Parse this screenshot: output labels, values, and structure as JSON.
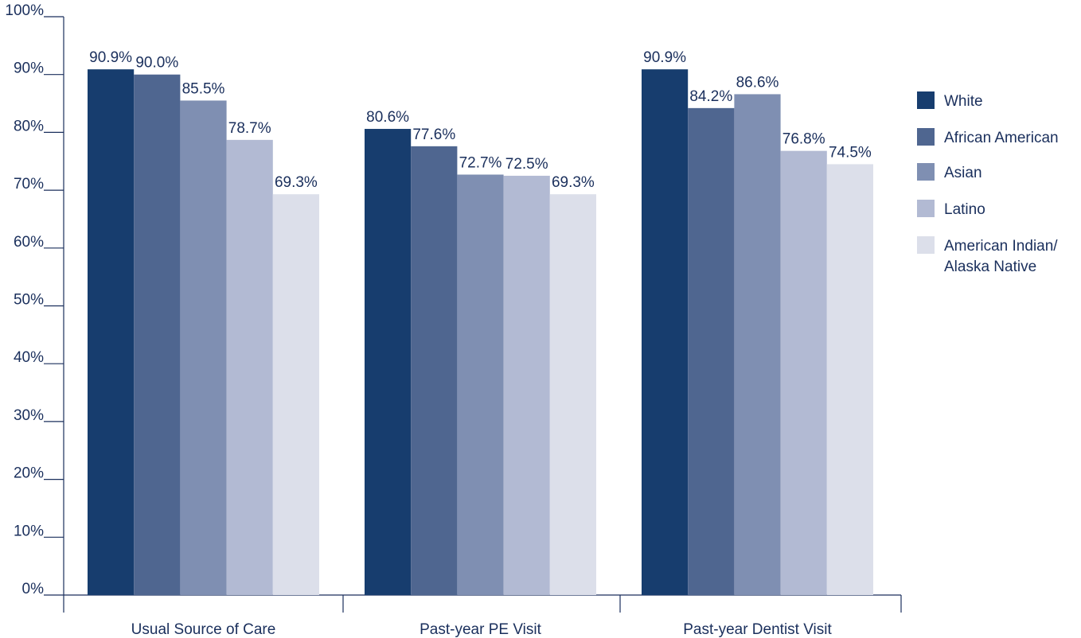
{
  "chart_data": {
    "type": "bar",
    "categories": [
      "Usual Source of Care",
      "Past-year PE Visit",
      "Past-year Dentist Visit"
    ],
    "series": [
      {
        "name": "White",
        "values": [
          90.9,
          80.6,
          90.9
        ],
        "labels": [
          "90.9%",
          "80.6%",
          "90.9%"
        ],
        "color": "#173d6e"
      },
      {
        "name": "African American",
        "values": [
          90.0,
          77.6,
          84.2
        ],
        "labels": [
          "90.0%",
          "77.6%",
          "84.2%"
        ],
        "color": "#4f6690"
      },
      {
        "name": "Asian",
        "values": [
          85.5,
          72.7,
          86.6
        ],
        "labels": [
          "85.5%",
          "72.7%",
          "86.6%"
        ],
        "color": "#7f8fb2"
      },
      {
        "name": "Latino",
        "values": [
          78.7,
          72.5,
          76.8
        ],
        "labels": [
          "78.7%",
          "72.5%",
          "76.8%"
        ],
        "color": "#b2bad3"
      },
      {
        "name": "American Indian/ Alaska Native",
        "legend_lines": [
          "American Indian/",
          "Alaska Native"
        ],
        "values": [
          69.3,
          69.3,
          74.5
        ],
        "labels": [
          "69.3%",
          "69.3%",
          "74.5%"
        ],
        "color": "#dcdfea"
      }
    ],
    "yticks": [
      "0%",
      "10%",
      "20%",
      "30%",
      "40%",
      "50%",
      "60%",
      "70%",
      "80%",
      "90%",
      "100%"
    ],
    "ylim": [
      0,
      100
    ],
    "grid": false,
    "legend": "right",
    "title": "",
    "xlabel": "",
    "ylabel": "",
    "text_color": "#1a2f5c",
    "axis_color": "#1a2f5c"
  }
}
